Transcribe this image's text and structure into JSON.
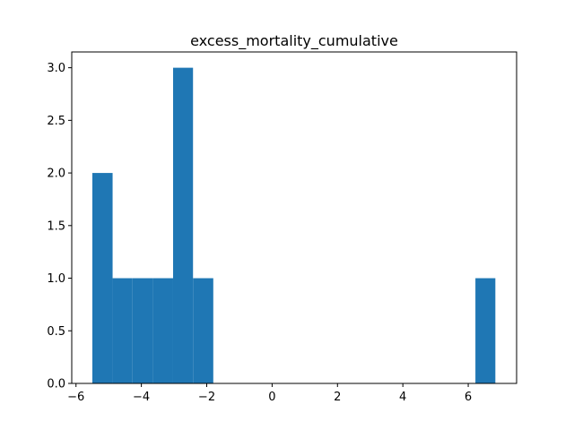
{
  "chart_data": {
    "type": "bar",
    "subtype": "histogram",
    "title": "excess_mortality_cumulative",
    "xlabel": "",
    "ylabel": "",
    "xlim": [
      -6.13,
      7.48
    ],
    "ylim": [
      0,
      3.15
    ],
    "bins": [
      {
        "x0": -5.5,
        "x1": -4.88,
        "count": 2
      },
      {
        "x0": -4.88,
        "x1": -4.27,
        "count": 1
      },
      {
        "x0": -4.27,
        "x1": -3.65,
        "count": 1
      },
      {
        "x0": -3.65,
        "x1": -3.03,
        "count": 1
      },
      {
        "x0": -3.03,
        "x1": -2.42,
        "count": 3
      },
      {
        "x0": -2.42,
        "x1": -1.8,
        "count": 1
      },
      {
        "x0": -1.8,
        "x1": -1.18,
        "count": 0
      },
      {
        "x0": -1.18,
        "x1": -0.57,
        "count": 0
      },
      {
        "x0": -0.57,
        "x1": 0.05,
        "count": 0
      },
      {
        "x0": 0.05,
        "x1": 0.67,
        "count": 0
      },
      {
        "x0": 0.67,
        "x1": 1.28,
        "count": 0
      },
      {
        "x0": 1.28,
        "x1": 1.9,
        "count": 0
      },
      {
        "x0": 1.9,
        "x1": 2.52,
        "count": 0
      },
      {
        "x0": 2.52,
        "x1": 3.13,
        "count": 0
      },
      {
        "x0": 3.13,
        "x1": 3.75,
        "count": 0
      },
      {
        "x0": 3.75,
        "x1": 4.37,
        "count": 0
      },
      {
        "x0": 4.37,
        "x1": 4.98,
        "count": 0
      },
      {
        "x0": 4.98,
        "x1": 5.6,
        "count": 0
      },
      {
        "x0": 5.6,
        "x1": 6.22,
        "count": 0
      },
      {
        "x0": 6.22,
        "x1": 6.83,
        "count": 1
      }
    ],
    "x_ticks": [
      {
        "value": -6,
        "label": "−6"
      },
      {
        "value": -4,
        "label": "−4"
      },
      {
        "value": -2,
        "label": "−2"
      },
      {
        "value": 0,
        "label": "0"
      },
      {
        "value": 2,
        "label": "2"
      },
      {
        "value": 4,
        "label": "4"
      },
      {
        "value": 6,
        "label": "6"
      }
    ],
    "y_ticks": [
      {
        "value": 0.0,
        "label": "0.0"
      },
      {
        "value": 0.5,
        "label": "0.5"
      },
      {
        "value": 1.0,
        "label": "1.0"
      },
      {
        "value": 1.5,
        "label": "1.5"
      },
      {
        "value": 2.0,
        "label": "2.0"
      },
      {
        "value": 2.5,
        "label": "2.5"
      },
      {
        "value": 3.0,
        "label": "3.0"
      }
    ],
    "grid": false,
    "legend": "none",
    "colors": {
      "bar": "#1f77b4",
      "axis": "#000000",
      "background": "#ffffff"
    }
  }
}
